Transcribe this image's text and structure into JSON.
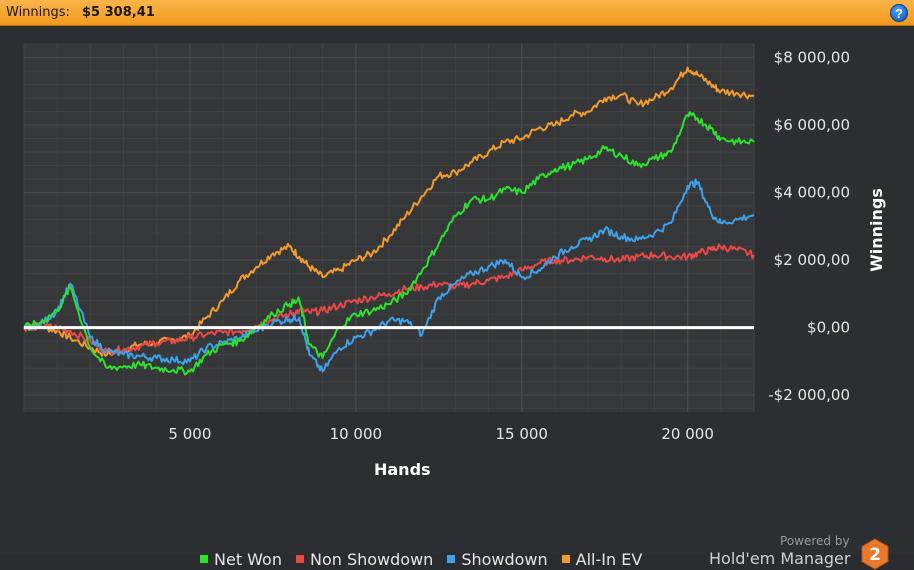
{
  "header": {
    "winnings_label": "Winnings:",
    "winnings_value": "$5 308,41",
    "help_symbol": "?"
  },
  "branding": {
    "powered_by": "Powered by",
    "product": "Hold'em Manager",
    "logo_text": "2",
    "logo_color": "#e8782a"
  },
  "colors": {
    "net_won": "#2ee02e",
    "non_showdown": "#e84848",
    "showdown": "#3ea0e8",
    "all_in_ev": "#f29a2e",
    "zero_line": "#ffffff",
    "plot_bg": "#353739",
    "grid": "#47494c"
  },
  "chart_data": {
    "type": "line",
    "title": "",
    "xlabel": "Hands",
    "ylabel": "Winnings",
    "xlim": [
      0,
      22000
    ],
    "ylim": [
      -2500,
      8400
    ],
    "x_ticks": [
      5000,
      10000,
      15000,
      20000
    ],
    "x_tick_labels": [
      "5 000",
      "10 000",
      "15 000",
      "20 000"
    ],
    "y_ticks": [
      -2000,
      0,
      2000,
      4000,
      6000,
      8000
    ],
    "y_tick_labels": [
      "-$2 000,00",
      "$0,00",
      "$2 000,00",
      "$4 000,00",
      "$6 000,00",
      "$8 000,00"
    ],
    "grid": true,
    "legend_position": "bottom",
    "x": [
      0,
      500,
      1000,
      1400,
      2000,
      2500,
      3000,
      3500,
      4000,
      4500,
      5000,
      5500,
      6000,
      6500,
      7000,
      7500,
      8000,
      8300,
      8600,
      9000,
      9500,
      10000,
      10500,
      11000,
      11500,
      12000,
      12500,
      13000,
      13500,
      14000,
      14500,
      15000,
      15500,
      16000,
      16500,
      17000,
      17500,
      18000,
      18500,
      19000,
      19500,
      20000,
      20300,
      20700,
      21000,
      21500,
      22000
    ],
    "series": [
      {
        "name": "Net Won",
        "values": [
          0,
          150,
          500,
          1200,
          -600,
          -1200,
          -1150,
          -1100,
          -1200,
          -1250,
          -1300,
          -800,
          -500,
          -400,
          0,
          400,
          700,
          800,
          -500,
          -900,
          0,
          400,
          500,
          700,
          1000,
          1700,
          2500,
          3300,
          3800,
          3800,
          4100,
          4000,
          4400,
          4700,
          4800,
          5000,
          5300,
          5100,
          4800,
          5000,
          5200,
          6300,
          6200,
          5900,
          5600,
          5500,
          5500
        ]
      },
      {
        "name": "Non Showdown",
        "values": [
          0,
          50,
          0,
          -100,
          -400,
          -700,
          -650,
          -550,
          -450,
          -400,
          -300,
          -200,
          -150,
          -100,
          50,
          250,
          400,
          500,
          450,
          500,
          650,
          800,
          900,
          1000,
          1150,
          1200,
          1300,
          1200,
          1300,
          1400,
          1500,
          1700,
          1900,
          2000,
          2000,
          2100,
          2050,
          2000,
          2100,
          2150,
          2100,
          2100,
          2200,
          2300,
          2400,
          2300,
          2150
        ]
      },
      {
        "name": "Showdown",
        "values": [
          0,
          100,
          500,
          1300,
          -300,
          -700,
          -800,
          -850,
          -900,
          -950,
          -1000,
          -600,
          -450,
          -300,
          -100,
          150,
          250,
          300,
          -800,
          -1300,
          -600,
          -300,
          -100,
          200,
          200,
          -200,
          900,
          1300,
          1600,
          1800,
          2000,
          1500,
          1700,
          2100,
          2400,
          2600,
          2900,
          2700,
          2600,
          2800,
          3100,
          4200,
          4300,
          3400,
          3100,
          3200,
          3350
        ]
      },
      {
        "name": "All-In EV",
        "values": [
          0,
          50,
          -100,
          -300,
          -600,
          -800,
          -650,
          -500,
          -450,
          -350,
          -250,
          300,
          800,
          1400,
          1800,
          2200,
          2400,
          2100,
          1800,
          1500,
          1700,
          2000,
          2200,
          2700,
          3300,
          3900,
          4500,
          4600,
          4900,
          5200,
          5500,
          5600,
          5900,
          6000,
          6300,
          6400,
          6800,
          6900,
          6600,
          6800,
          7100,
          7700,
          7500,
          7200,
          7000,
          6950,
          6850
        ]
      }
    ]
  }
}
